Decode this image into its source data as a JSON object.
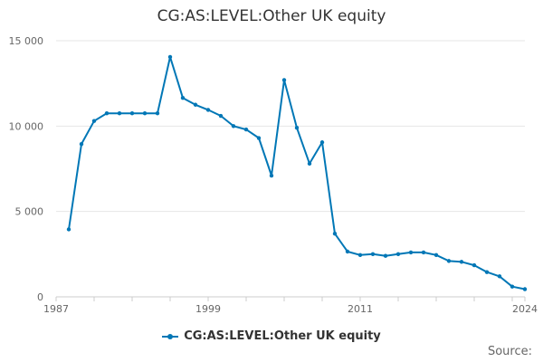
{
  "chart_data": {
    "type": "line",
    "title": "CG:AS:LEVEL:Other UK equity",
    "xlabel": "",
    "ylabel": "",
    "xlim": [
      1987,
      2024
    ],
    "ylim": [
      0,
      15000
    ],
    "x_ticks": [
      1987,
      1999,
      2011,
      2024
    ],
    "x_tick_labels": [
      "1987",
      "1999",
      "2011",
      "2024"
    ],
    "y_ticks": [
      0,
      5000,
      10000,
      15000
    ],
    "y_tick_labels": [
      "0",
      "5 000",
      "10 000",
      "15 000"
    ],
    "grid": true,
    "legend_position": "bottom",
    "series": [
      {
        "name": "CG:AS:LEVEL:Other UK equity",
        "color": "#0077b6",
        "x": [
          1988,
          1989,
          1990,
          1991,
          1992,
          1993,
          1994,
          1995,
          1996,
          1997,
          1998,
          1999,
          2000,
          2001,
          2002,
          2003,
          2004,
          2005,
          2006,
          2007,
          2008,
          2009,
          2010,
          2011,
          2012,
          2013,
          2014,
          2015,
          2016,
          2017,
          2018,
          2019,
          2020,
          2021,
          2022,
          2023,
          2024
        ],
        "values": [
          3950,
          8950,
          10300,
          10750,
          10750,
          10750,
          10750,
          10750,
          14050,
          11650,
          11250,
          10950,
          10600,
          10000,
          9800,
          9300,
          7100,
          12700,
          9900,
          7800,
          9050,
          3700,
          2650,
          2450,
          2500,
          2400,
          2500,
          2600,
          2600,
          2450,
          2100,
          2050,
          1850,
          1450,
          1200,
          600,
          450
        ]
      }
    ]
  },
  "legend": {
    "label": "CG:AS:LEVEL:Other UK equity"
  },
  "footer": {
    "source": "Source:"
  }
}
